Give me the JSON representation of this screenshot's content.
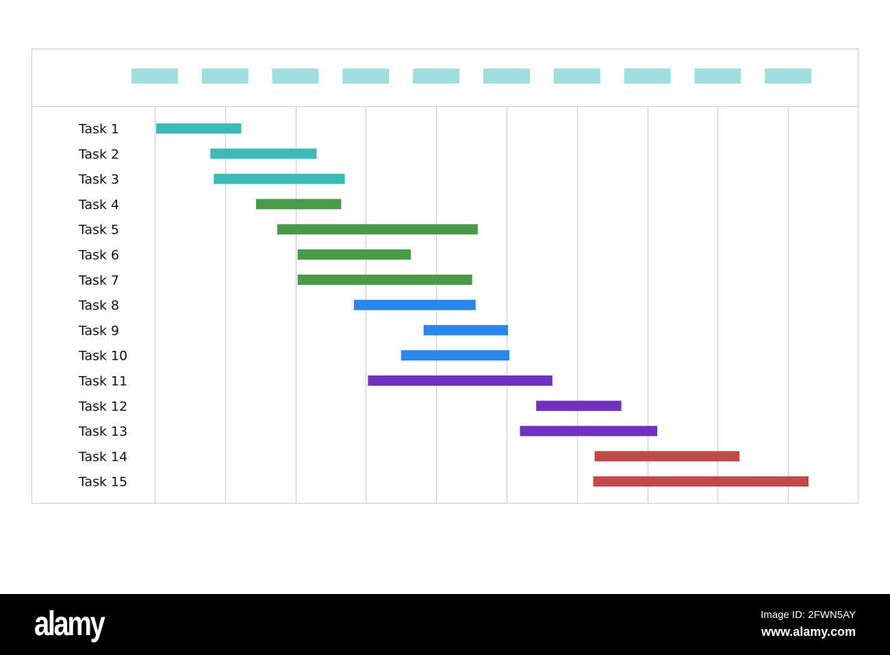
{
  "chart_data": {
    "type": "gantt",
    "title": "",
    "xlim": [
      0,
      10
    ],
    "grid": true,
    "header_placeholder_count": 10,
    "header_placeholder_color": "#9fdfe0",
    "tasks": [
      {
        "label": "Task 1",
        "start": 0.02,
        "end": 1.23,
        "color": "#3dbab5"
      },
      {
        "label": "Task 2",
        "start": 0.79,
        "end": 2.3,
        "color": "#3dbab5"
      },
      {
        "label": "Task 3",
        "start": 0.84,
        "end": 2.7,
        "color": "#3dbab5"
      },
      {
        "label": "Task 4",
        "start": 1.44,
        "end": 2.65,
        "color": "#4a9a4a"
      },
      {
        "label": "Task 5",
        "start": 1.74,
        "end": 4.59,
        "color": "#4a9a4a"
      },
      {
        "label": "Task 6",
        "start": 2.03,
        "end": 3.64,
        "color": "#4a9a4a"
      },
      {
        "label": "Task 7",
        "start": 2.03,
        "end": 4.51,
        "color": "#4a9a4a"
      },
      {
        "label": "Task 8",
        "start": 2.83,
        "end": 4.56,
        "color": "#2a86e8"
      },
      {
        "label": "Task 9",
        "start": 3.82,
        "end": 5.02,
        "color": "#2a86e8"
      },
      {
        "label": "Task 10",
        "start": 3.5,
        "end": 5.04,
        "color": "#2a86e8"
      },
      {
        "label": "Task 11",
        "start": 3.03,
        "end": 5.65,
        "color": "#7030c0"
      },
      {
        "label": "Task 12",
        "start": 5.42,
        "end": 6.63,
        "color": "#7030c0"
      },
      {
        "label": "Task 13",
        "start": 5.19,
        "end": 7.14,
        "color": "#7030c0"
      },
      {
        "label": "Task 14",
        "start": 6.25,
        "end": 8.31,
        "color": "#c04a4a"
      },
      {
        "label": "Task 15",
        "start": 6.23,
        "end": 9.29,
        "color": "#c04a4a"
      }
    ]
  },
  "watermark": {
    "logo": "alamy",
    "image_id": "Image ID: 2FWN5AY",
    "site": "www.alamy.com"
  }
}
